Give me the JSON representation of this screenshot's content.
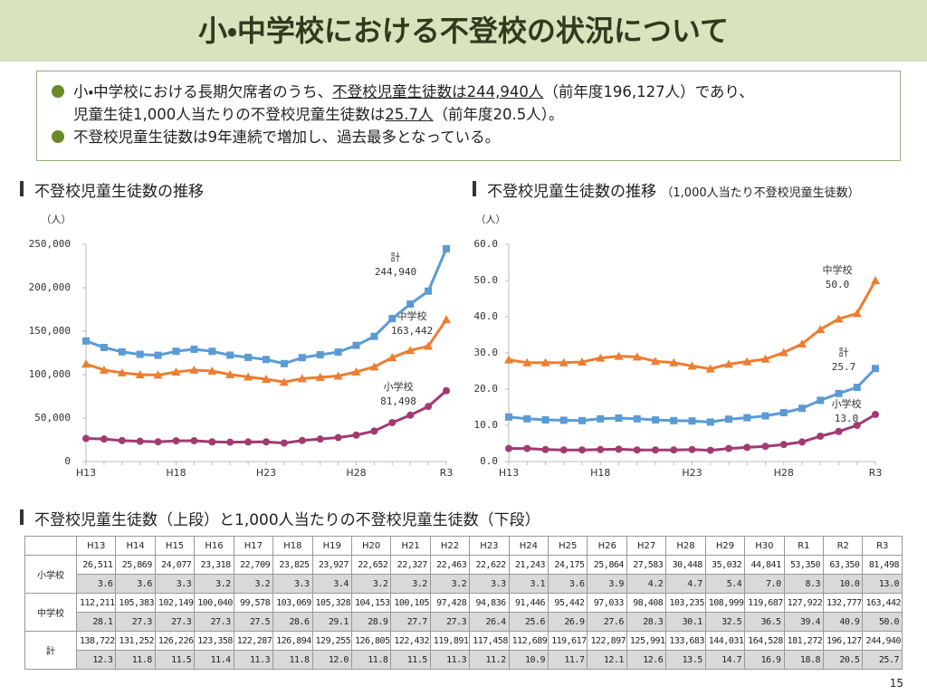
{
  "header": {
    "title": "小・中学校における不登校の状況について"
  },
  "bullets": [
    [
      [
        {
          "text": "小・中学校における長期欠席者のうち、",
          "underline": false
        },
        {
          "text": "不登校児童生徒数は244,940人",
          "underline": true
        },
        {
          "text": "（前年度196,127人）であり、",
          "underline": false
        }
      ],
      [
        {
          "text": "児童生徒1,000人当たりの不登校児童生徒数は",
          "underline": false
        },
        {
          "text": "25.7人",
          "underline": true
        },
        {
          "text": "（前年度20.5人）。",
          "underline": false
        }
      ]
    ],
    [
      [
        {
          "text": "不登校児童生徒数は9年連続で増加し、過去最多となっている。",
          "underline": false
        }
      ]
    ]
  ],
  "chart_data": [
    {
      "type": "line",
      "title": "不登校児童生徒数の推移",
      "y_label": "（人）",
      "categories": [
        "H13",
        null,
        null,
        null,
        null,
        "H18",
        null,
        null,
        null,
        null,
        "H23",
        null,
        null,
        null,
        null,
        "H28",
        null,
        null,
        null,
        null,
        "R3"
      ],
      "ylim": [
        0,
        250000
      ],
      "yticks": [
        0,
        {
          "value": 50000,
          "label": "50,000"
        },
        {
          "value": 100000,
          "label": "100,000"
        },
        {
          "value": 150000,
          "label": "150,000"
        },
        {
          "value": 200000,
          "label": "200,000"
        },
        {
          "value": 250000,
          "label": "250,000"
        }
      ],
      "series": [
        {
          "name": "小学校",
          "color": "#a23a72",
          "marker": "circle",
          "end_label": "81,498",
          "values": [
            26511,
            25869,
            24077,
            23318,
            22709,
            23825,
            23927,
            22652,
            22327,
            22463,
            22622,
            21243,
            24175,
            25864,
            27583,
            30448,
            35032,
            44841,
            53350,
            63350,
            81498
          ]
        },
        {
          "name": "中学校",
          "color": "#ed7d31",
          "marker": "triangle",
          "end_label": "163,442",
          "values": [
            112211,
            105383,
            102149,
            100040,
            99578,
            103069,
            105328,
            104153,
            100105,
            97428,
            94836,
            91446,
            95442,
            97033,
            98408,
            103235,
            108999,
            119687,
            127922,
            132777,
            163442
          ]
        },
        {
          "name": "計",
          "color": "#5b9bd5",
          "marker": "square",
          "end_label": "244,940",
          "values": [
            138722,
            131252,
            126226,
            123358,
            122287,
            126894,
            129255,
            126805,
            122432,
            119891,
            117458,
            112689,
            119617,
            122897,
            125991,
            133683,
            144031,
            164528,
            181272,
            196127,
            244940
          ]
        }
      ]
    },
    {
      "type": "line",
      "title": "不登校児童生徒数の推移",
      "subtitle": "（1,000人当たり不登校児童生徒数）",
      "y_label": "（人）",
      "categories": [
        "H13",
        null,
        null,
        null,
        null,
        "H18",
        null,
        null,
        null,
        null,
        "H23",
        null,
        null,
        null,
        null,
        "H28",
        null,
        null,
        null,
        null,
        "R3"
      ],
      "ylim": [
        0,
        60
      ],
      "yticks": [
        {
          "value": 0,
          "label": "0.0"
        },
        {
          "value": 10,
          "label": "10.0"
        },
        {
          "value": 20,
          "label": "20.0"
        },
        {
          "value": 30,
          "label": "30.0"
        },
        {
          "value": 40,
          "label": "40.0"
        },
        {
          "value": 50,
          "label": "50.0"
        },
        {
          "value": 60,
          "label": "60.0"
        }
      ],
      "series": [
        {
          "name": "小学校",
          "color": "#a23a72",
          "marker": "circle",
          "end_label": "13.0",
          "values": [
            3.6,
            3.6,
            3.3,
            3.2,
            3.2,
            3.3,
            3.4,
            3.2,
            3.2,
            3.2,
            3.3,
            3.1,
            3.6,
            3.9,
            4.2,
            4.7,
            5.4,
            7.0,
            8.3,
            10.0,
            13.0
          ]
        },
        {
          "name": "中学校",
          "color": "#ed7d31",
          "marker": "triangle",
          "end_label": "50.0",
          "values": [
            28.1,
            27.3,
            27.3,
            27.3,
            27.5,
            28.6,
            29.1,
            28.9,
            27.7,
            27.3,
            26.4,
            25.6,
            26.9,
            27.6,
            28.3,
            30.1,
            32.5,
            36.5,
            39.4,
            40.9,
            50.0
          ]
        },
        {
          "name": "計",
          "color": "#5b9bd5",
          "marker": "square",
          "end_label": "25.7",
          "values": [
            12.3,
            11.8,
            11.5,
            11.4,
            11.3,
            11.8,
            12.0,
            11.8,
            11.5,
            11.3,
            11.2,
            10.9,
            11.7,
            12.1,
            12.6,
            13.5,
            14.7,
            16.9,
            18.8,
            20.5,
            25.7
          ]
        }
      ]
    }
  ],
  "table": {
    "title": "不登校児童生徒数（上段）と1,000人当たりの不登校児童生徒数（下段）",
    "columns": [
      "H13",
      "H14",
      "H15",
      "H16",
      "H17",
      "H18",
      "H19",
      "H20",
      "H21",
      "H22",
      "H23",
      "H24",
      "H25",
      "H26",
      "H27",
      "H28",
      "H29",
      "H30",
      "R1",
      "R2",
      "R3"
    ],
    "rows": [
      {
        "label": "小学校",
        "counts": [
          "26,511",
          "25,869",
          "24,077",
          "23,318",
          "22,709",
          "23,825",
          "23,927",
          "22,652",
          "22,327",
          "22,463",
          "22,622",
          "21,243",
          "24,175",
          "25,864",
          "27,583",
          "30,448",
          "35,032",
          "44,841",
          "53,350",
          "63,350",
          "81,498"
        ],
        "rates": [
          "3.6",
          "3.6",
          "3.3",
          "3.2",
          "3.2",
          "3.3",
          "3.4",
          "3.2",
          "3.2",
          "3.2",
          "3.3",
          "3.1",
          "3.6",
          "3.9",
          "4.2",
          "4.7",
          "5.4",
          "7.0",
          "8.3",
          "10.0",
          "13.0"
        ]
      },
      {
        "label": "中学校",
        "counts": [
          "112,211",
          "105,383",
          "102,149",
          "100,040",
          "99,578",
          "103,069",
          "105,328",
          "104,153",
          "100,105",
          "97,428",
          "94,836",
          "91,446",
          "95,442",
          "97,033",
          "98,408",
          "103,235",
          "108,999",
          "119,687",
          "127,922",
          "132,777",
          "163,442"
        ],
        "rates": [
          "28.1",
          "27.3",
          "27.3",
          "27.3",
          "27.5",
          "28.6",
          "29.1",
          "28.9",
          "27.7",
          "27.3",
          "26.4",
          "25.6",
          "26.9",
          "27.6",
          "28.3",
          "30.1",
          "32.5",
          "36.5",
          "39.4",
          "40.9",
          "50.0"
        ]
      },
      {
        "label": "計",
        "counts": [
          "138,722",
          "131,252",
          "126,226",
          "123,358",
          "122,287",
          "126,894",
          "129,255",
          "126,805",
          "122,432",
          "119,891",
          "117,458",
          "112,689",
          "119,617",
          "122,897",
          "125,991",
          "133,683",
          "144,031",
          "164,528",
          "181,272",
          "196,127",
          "244,940"
        ],
        "rates": [
          "12.3",
          "11.8",
          "11.5",
          "11.4",
          "11.3",
          "11.8",
          "12.0",
          "11.8",
          "11.5",
          "11.3",
          "11.2",
          "10.9",
          "11.7",
          "12.1",
          "12.6",
          "13.5",
          "14.7",
          "16.9",
          "18.8",
          "20.5",
          "25.7"
        ]
      }
    ]
  },
  "footer": {
    "page": "15"
  }
}
